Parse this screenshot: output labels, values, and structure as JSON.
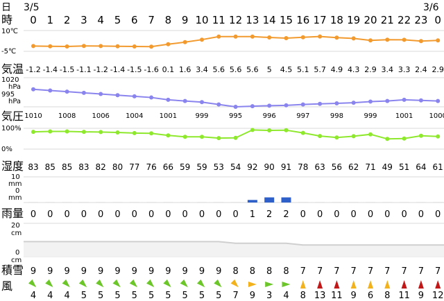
{
  "header": {
    "day_label": "日",
    "hour_label": "時",
    "date_left": "3/5",
    "date_right": "3/6"
  },
  "labels": {
    "temp": "気温",
    "pressure": "気圧",
    "humidity": "湿度",
    "rain": "雨量",
    "snow": "積雪",
    "wind": "風"
  },
  "units": {
    "temp_top": "10℃",
    "temp_bottom": "-5℃",
    "pres_top": "1020",
    "pres_top_unit": "hPa",
    "pres_bottom": "995",
    "pres_bottom_unit": "hPa",
    "hum_top": "100%",
    "hum_bottom": "0%",
    "rain_top": "10",
    "rain_top_unit": "mm",
    "rain_bottom": "0",
    "rain_bottom_unit": "mm",
    "snow_top": "20",
    "snow_top_unit": "cm",
    "snow_bottom": "0",
    "snow_bottom_unit": "cm"
  },
  "colors": {
    "temp": "#f29a2e",
    "pressure": "#8a84ee",
    "humidity": "#8ee82c",
    "rain": "#2f5fc8",
    "snow": "#cfcfcf",
    "grid": "#d8d8d8",
    "wind_green": "#6cc62a",
    "wind_yellow": "#f2b21e",
    "wind_red": "#c01818"
  },
  "chart_data": {
    "type": "line",
    "hours": [
      "0",
      "1",
      "2",
      "3",
      "4",
      "5",
      "6",
      "7",
      "8",
      "9",
      "10",
      "11",
      "12",
      "13",
      "14",
      "15",
      "16",
      "17",
      "18",
      "19",
      "20",
      "21",
      "22",
      "23",
      "0"
    ],
    "temperature": {
      "unit": "℃",
      "ylim": [
        -5,
        10
      ],
      "values": [
        -1.2,
        -1.4,
        -1.5,
        -1.1,
        -1.2,
        -1.4,
        -1.5,
        -1.6,
        0.1,
        1.6,
        3.4,
        5.6,
        5.6,
        5.6,
        5,
        4.5,
        5.1,
        5.7,
        4.9,
        4.3,
        2.9,
        3.4,
        3.3,
        2.4,
        2.9
      ],
      "labels": [
        "-1.2",
        "-1.4",
        "-1.5",
        "-1.1",
        "-1.2",
        "-1.4",
        "-1.5",
        "-1.6",
        "0.1",
        "1.6",
        "3.4",
        "5.6",
        "5.6",
        "5.6",
        "5",
        "4.5",
        "5.1",
        "5.7",
        "4.9",
        "4.3",
        "2.9",
        "3.4",
        "3.3",
        "2.4",
        "2.9"
      ]
    },
    "pressure": {
      "unit": "hPa",
      "ylim": [
        995,
        1020
      ],
      "values": [
        1010,
        1009,
        1008,
        1007,
        1006,
        1005,
        1004,
        1003,
        1001,
        1000,
        999,
        997,
        995,
        995.5,
        996,
        996.3,
        997,
        997.5,
        998,
        998.5,
        999.5,
        1000,
        1001,
        1000.5,
        1000
      ],
      "labels": [
        "1010",
        "",
        "1008",
        "",
        "1006",
        "",
        "1004",
        "",
        "1001",
        "",
        "999",
        "",
        "995",
        "",
        "996",
        "",
        "997",
        "",
        "998",
        "",
        "999",
        "",
        "1001",
        "",
        "1000"
      ]
    },
    "humidity": {
      "unit": "%",
      "ylim": [
        0,
        100
      ],
      "values": [
        83,
        85,
        85,
        83,
        82,
        80,
        77,
        76,
        66,
        59,
        59,
        53,
        54,
        92,
        90,
        91,
        78,
        63,
        56,
        62,
        71,
        49,
        51,
        64,
        61
      ],
      "labels": [
        "83",
        "85",
        "85",
        "83",
        "82",
        "80",
        "77",
        "76",
        "66",
        "59",
        "59",
        "53",
        "54",
        "92",
        "90",
        "91",
        "78",
        "63",
        "56",
        "62",
        "71",
        "49",
        "51",
        "64",
        "61"
      ]
    },
    "rain": {
      "unit": "mm",
      "ylim": [
        0,
        10
      ],
      "values": [
        0,
        0,
        0,
        0,
        0,
        0,
        0,
        0,
        0,
        0,
        0,
        0,
        0,
        1,
        2,
        2,
        0,
        0,
        0,
        0,
        0,
        0,
        0,
        0,
        0
      ],
      "labels": [
        "0",
        "0",
        "0",
        "0",
        "0",
        "0",
        "0",
        "0",
        "0",
        "0",
        "0",
        "0",
        "0",
        "1",
        "2",
        "2",
        "0",
        "0",
        "0",
        "0",
        "0",
        "0",
        "0",
        "0",
        "0"
      ]
    },
    "snow": {
      "unit": "cm",
      "ylim": [
        0,
        20
      ],
      "values": [
        9,
        9,
        9,
        9,
        9,
        9,
        9,
        9,
        9,
        9,
        9,
        9,
        8,
        8,
        8,
        8,
        7,
        7,
        7,
        7,
        7,
        7,
        7,
        7,
        7
      ],
      "labels": [
        "9",
        "9",
        "9",
        "9",
        "9",
        "9",
        "9",
        "9",
        "9",
        "9",
        "9",
        "9",
        "8",
        "8",
        "8",
        "8",
        "7",
        "7",
        "7",
        "7",
        "7",
        "7",
        "7",
        "7",
        "7"
      ]
    },
    "wind": {
      "unit": "m/s",
      "speeds": [
        "4",
        "4",
        "4",
        "5",
        "5",
        "5",
        "5",
        "5",
        "5",
        "5",
        "5",
        "5",
        "7",
        "9",
        "3",
        "4",
        "8",
        "13",
        "11",
        "9",
        "6",
        "8",
        "11",
        "9",
        "12"
      ],
      "directions_deg": [
        45,
        45,
        45,
        45,
        45,
        45,
        45,
        45,
        45,
        45,
        45,
        45,
        45,
        0,
        0,
        0,
        270,
        270,
        270,
        270,
        270,
        270,
        270,
        270,
        270
      ],
      "levels": [
        "green",
        "green",
        "green",
        "green",
        "green",
        "green",
        "green",
        "green",
        "green",
        "green",
        "green",
        "green",
        "yellow",
        "yellow",
        "green",
        "green",
        "yellow",
        "red",
        "red",
        "yellow",
        "yellow",
        "yellow",
        "red",
        "red",
        "red"
      ]
    }
  }
}
